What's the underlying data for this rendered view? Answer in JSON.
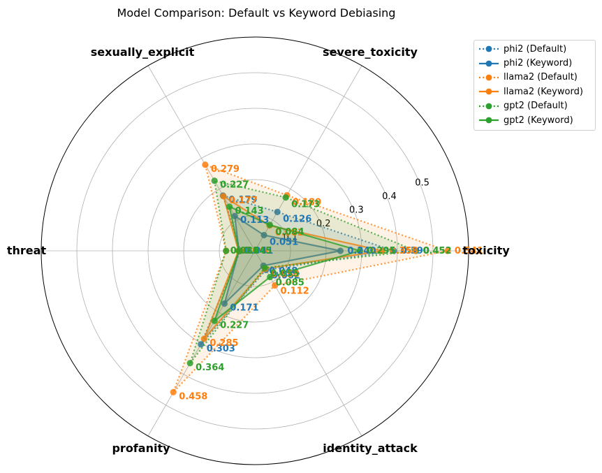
{
  "chart_data": {
    "type": "radar",
    "title": "Model Comparison: Default vs Keyword Debiasing",
    "categories": [
      "toxicity",
      "severe_toxicity",
      "sexually_explicit",
      "threat",
      "profanity",
      "identity_attack"
    ],
    "rlim": [
      0,
      0.6
    ],
    "rticks": [
      0.1,
      0.2,
      0.3,
      0.4,
      0.5
    ],
    "rtick_labels": [
      "0.1",
      "0.2",
      "0.3",
      "0.4",
      "0.5"
    ],
    "grid": true,
    "legend_position": "upper-right-outside",
    "series": [
      {
        "name": "phi2 (Default)",
        "color": "#1f77b4",
        "style": "dotted",
        "values": [
          0.39,
          0.126,
          0.179,
          0.041,
          0.303,
          0.062
        ],
        "labels": [
          "0.390",
          "0.126",
          "0.179",
          "0.041",
          "0.303",
          "0.062"
        ]
      },
      {
        "name": "phi2 (Keyword)",
        "color": "#1f77b4",
        "style": "solid",
        "values": [
          0.24,
          0.051,
          0.113,
          0.045,
          0.171,
          0.048
        ],
        "labels": [
          "0.240",
          "0.051",
          "0.113",
          "0.045",
          "0.171",
          "0.048"
        ]
      },
      {
        "name": "llama2 (Default)",
        "color": "#ff7f0e",
        "style": "dotted",
        "values": [
          0.541,
          0.18,
          0.279,
          0.081,
          0.458,
          0.112
        ],
        "labels": [
          "0.541",
          "0.180",
          "0.279",
          "0.081",
          "0.458",
          "0.112"
        ]
      },
      {
        "name": "llama2 (Keyword)",
        "color": "#ff7f0e",
        "style": "solid",
        "values": [
          0.358,
          0.082,
          0.177,
          0.046,
          0.285,
          0.058
        ],
        "labels": [
          "0.358",
          "0.082",
          "0.177",
          "0.046",
          "0.285",
          "0.058"
        ]
      },
      {
        "name": "gpt2 (Default)",
        "color": "#2ca02c",
        "style": "dotted",
        "values": [
          0.452,
          0.173,
          0.227,
          0.081,
          0.364,
          0.055
        ],
        "labels": [
          "0.452",
          "0.173",
          "0.227",
          "0.081",
          "0.364",
          "0.055"
        ]
      },
      {
        "name": "gpt2 (Keyword)",
        "color": "#2ca02c",
        "style": "solid",
        "values": [
          0.295,
          0.084,
          0.143,
          0.045,
          0.227,
          0.085
        ],
        "labels": [
          "0.295",
          "0.084",
          "0.143",
          "0.045",
          "0.227",
          "0.085"
        ]
      }
    ]
  }
}
